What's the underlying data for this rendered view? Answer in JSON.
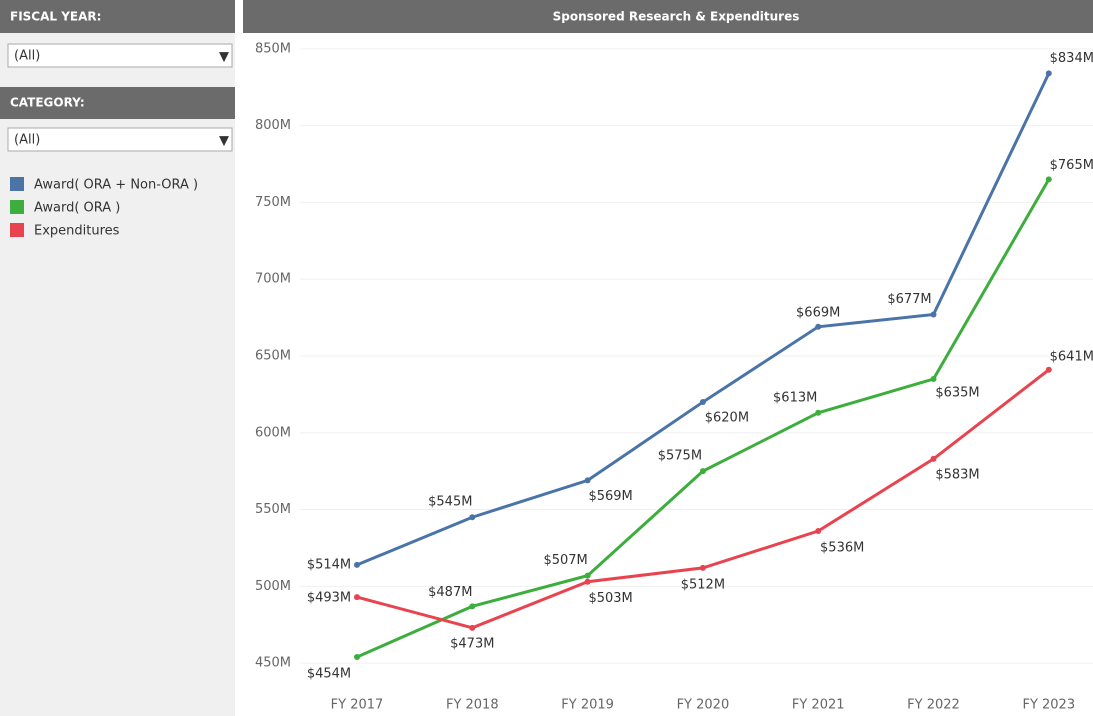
{
  "filters": [
    {
      "label": "FISCAL YEAR:",
      "value": "(All)"
    },
    {
      "label": "CATEGORY:",
      "value": "(All)"
    }
  ],
  "chart_data": {
    "type": "line",
    "title": "Sponsored Research & Expenditures",
    "categories": [
      "FY 2017",
      "FY 2018",
      "FY 2019",
      "FY 2020",
      "FY 2021",
      "FY 2022",
      "FY 2023"
    ],
    "series": [
      {
        "name": "Award( ORA + Non-ORA )",
        "color": "#4a74a8",
        "values": [
          514,
          545,
          569,
          620,
          669,
          677,
          834
        ],
        "value_labels": [
          "$514M",
          "$545M",
          "$569M",
          "$620M",
          "$669M",
          "$677M",
          "$834M"
        ]
      },
      {
        "name": "Award( ORA )",
        "color": "#3dae3d",
        "values": [
          454,
          487,
          507,
          575,
          613,
          635,
          765
        ],
        "value_labels": [
          "$454M",
          "$487M",
          "$507M",
          "$575M",
          "$613M",
          "$635M",
          "$765M"
        ]
      },
      {
        "name": "Expenditures",
        "color": "#e8434f",
        "values": [
          493,
          473,
          503,
          512,
          536,
          583,
          641
        ],
        "value_labels": [
          "$493M",
          "$473M",
          "$503M",
          "$512M",
          "$536M",
          "$583M",
          "$641M"
        ]
      }
    ],
    "ylim": [
      426,
      859
    ],
    "yticks": [
      {
        "value": 450,
        "label": "450M"
      },
      {
        "value": 500,
        "label": "500M"
      },
      {
        "value": 550,
        "label": "550M"
      },
      {
        "value": 600,
        "label": "600M"
      },
      {
        "value": 650,
        "label": "650M"
      },
      {
        "value": 700,
        "label": "700M"
      },
      {
        "value": 750,
        "label": "750M"
      },
      {
        "value": 800,
        "label": "800M"
      },
      {
        "value": 850,
        "label": "850M"
      }
    ],
    "grid": true
  }
}
